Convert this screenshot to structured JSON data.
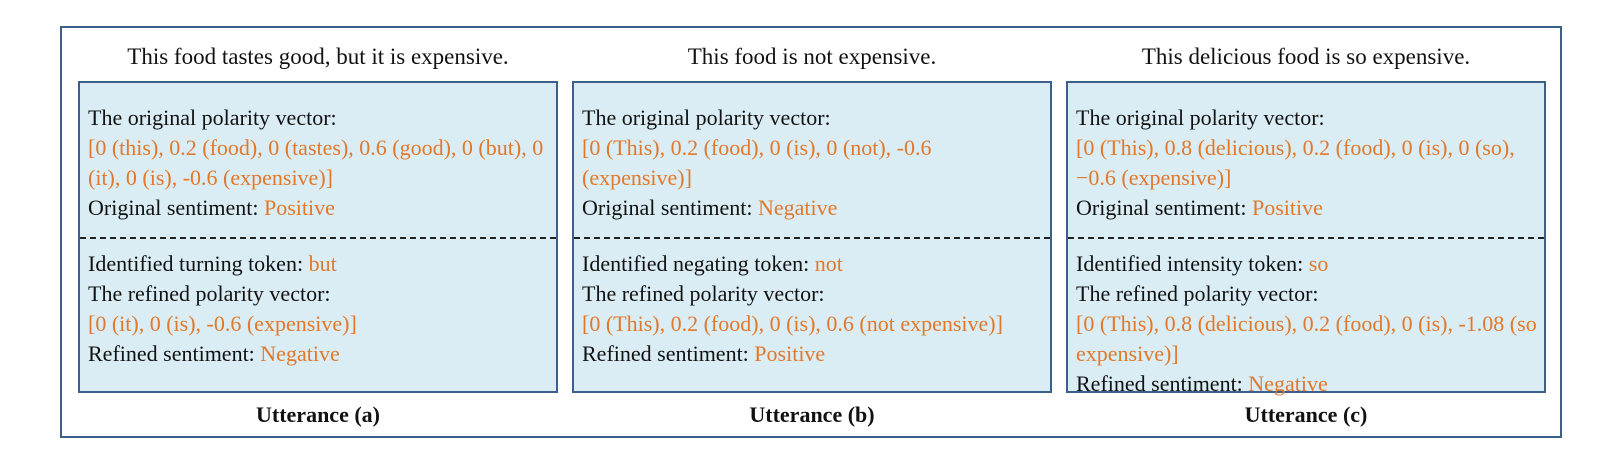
{
  "colors": {
    "border": "#3d5f8c",
    "panel": "#daedf4",
    "highlight": "#e2782a"
  },
  "utterances": [
    {
      "sentence": "This food tastes good, but it is expensive.",
      "original_label": "The original polarity vector:",
      "original_vector": "[0 (this), 0.2 (food), 0 (tastes), 0.6 (good), 0 (but), 0 (it), 0 (is), -0.6 (expensive)]",
      "original_sentiment_label": "Original sentiment:",
      "original_sentiment": "Positive",
      "token_label": "Identified turning token:",
      "token": "but",
      "refined_label": "The refined polarity vector:",
      "refined_vector": "[0 (it), 0 (is), -0.6 (expensive)]",
      "refined_sentiment_label": "Refined sentiment:",
      "refined_sentiment": "Negative",
      "caption": "Utterance (a)"
    },
    {
      "sentence": "This food is not expensive.",
      "original_label": "The original polarity vector:",
      "original_vector": "[0 (This), 0.2 (food), 0 (is), 0 (not), -0.6 (expensive)]",
      "original_sentiment_label": "Original sentiment:",
      "original_sentiment": "Negative",
      "token_label": "Identified negating token:",
      "token": "not",
      "refined_label": "The refined polarity vector:",
      "refined_vector": "[0 (This), 0.2 (food), 0 (is), 0.6 (not expensive)]",
      "refined_sentiment_label": "Refined sentiment:",
      "refined_sentiment": "Positive",
      "caption": "Utterance (b)"
    },
    {
      "sentence": "This delicious food is so expensive.",
      "original_label": "The original polarity vector:",
      "original_vector": "[0 (This), 0.8 (delicious), 0.2 (food), 0 (is), 0 (so), −0.6 (expensive)]",
      "original_sentiment_label": "Original sentiment:",
      "original_sentiment": "Positive",
      "token_label": "Identified intensity token:",
      "token": "so",
      "refined_label": "The refined polarity vector:",
      "refined_vector": "[0 (This), 0.8 (delicious), 0.2 (food), 0 (is), -1.08 (so expensive)]",
      "refined_sentiment_label": "Refined sentiment:",
      "refined_sentiment": "Negative",
      "caption": "Utterance (c)"
    }
  ]
}
